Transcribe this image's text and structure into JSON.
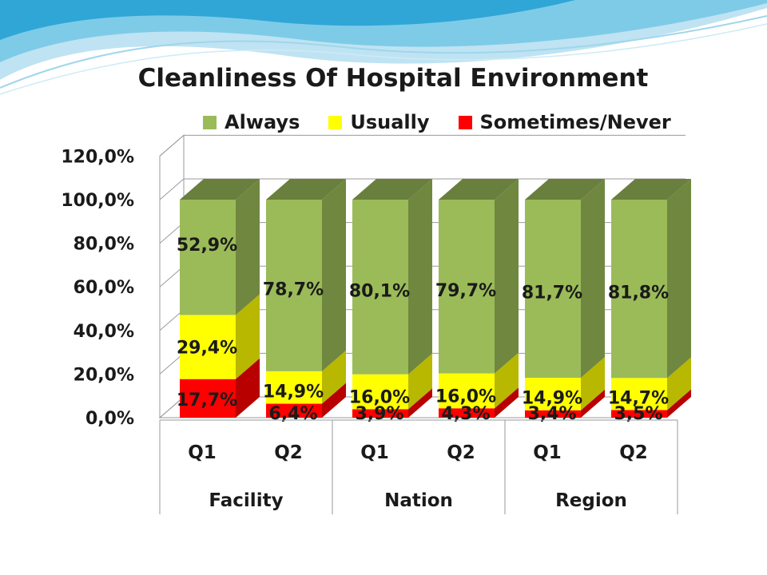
{
  "colors": {
    "always": "#9bbb59",
    "usually": "#ffff00",
    "sometimes": "#ff0000"
  },
  "chart_data": {
    "type": "bar",
    "stacked": true,
    "three_d": true,
    "title": "Cleanliness Of Hospital Environment",
    "legend_position": "top",
    "grid": true,
    "ylim": [
      0,
      120
    ],
    "y_ticks": [
      "0,0%",
      "20,0%",
      "40,0%",
      "60,0%",
      "80,0%",
      "100,0%",
      "120,0%"
    ],
    "groups": [
      "Facility",
      "Nation",
      "Region"
    ],
    "categories": [
      "Q1",
      "Q2",
      "Q1",
      "Q2",
      "Q1",
      "Q2"
    ],
    "series": [
      {
        "name": "Sometimes/Never",
        "color": "#ff0000",
        "values": [
          17.7,
          6.4,
          3.9,
          4.3,
          3.4,
          3.5
        ],
        "labels": [
          "17,7%",
          "6,4%",
          "3,9%",
          "4,3%",
          "3,4%",
          "3,5%"
        ]
      },
      {
        "name": "Usually",
        "color": "#ffff00",
        "values": [
          29.4,
          14.9,
          16.0,
          16.0,
          14.9,
          14.7
        ],
        "labels": [
          "29,4%",
          "14,9%",
          "16,0%",
          "16,0%",
          "14,9%",
          "14,7%"
        ]
      },
      {
        "name": "Always",
        "color": "#9bbb59",
        "values": [
          52.9,
          78.7,
          80.1,
          79.7,
          81.7,
          81.8
        ],
        "labels": [
          "52,9%",
          "78,7%",
          "80,1%",
          "79,7%",
          "81,7%",
          "81,8%"
        ]
      }
    ]
  }
}
